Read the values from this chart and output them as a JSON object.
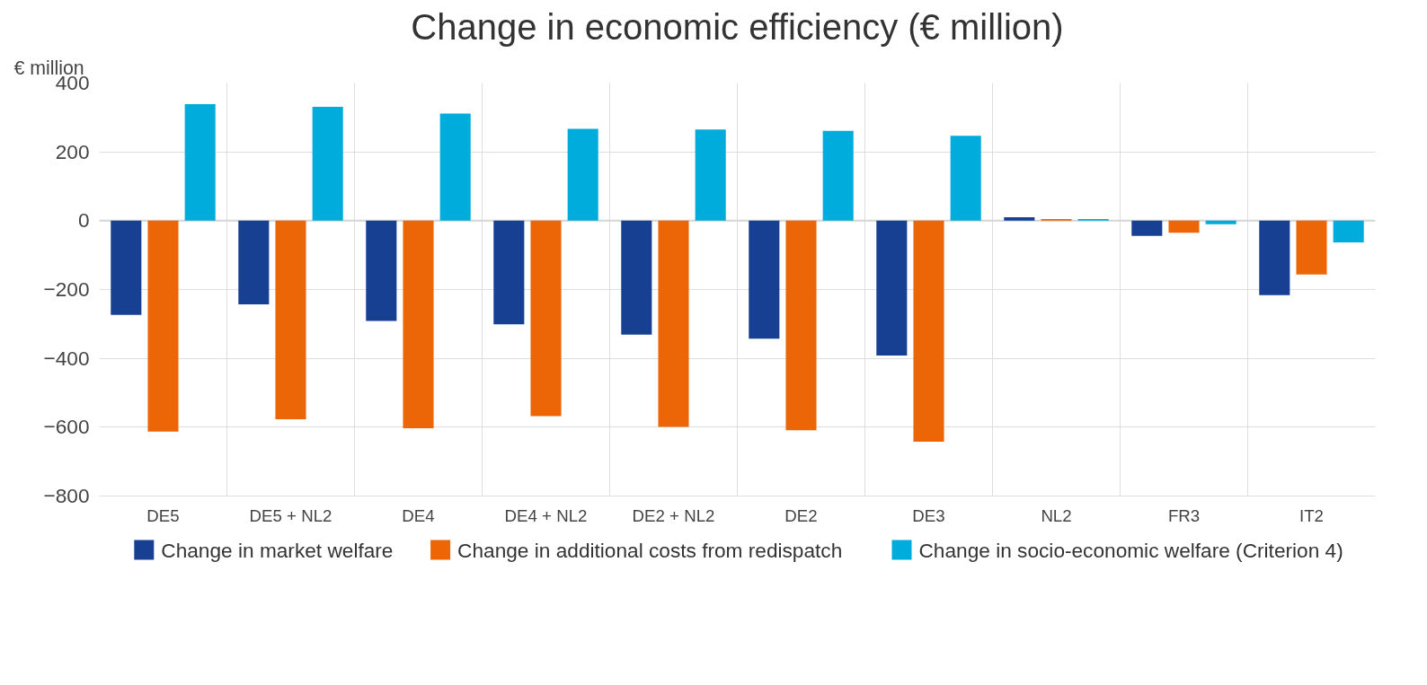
{
  "chart_data": {
    "type": "bar",
    "title": "Change in economic efficiency (€ million)",
    "ylabel": "€ million",
    "categories": [
      "DE5",
      "DE5 + NL2",
      "DE4",
      "DE4 + NL2",
      "DE2 + NL2",
      "DE2",
      "DE3",
      "NL2",
      "FR3",
      "IT2"
    ],
    "series": [
      {
        "name": "Change in market welfare",
        "color": "#174093",
        "values": [
          -274,
          -243,
          -291,
          -301,
          -331,
          -343,
          -392,
          10,
          -44,
          -216
        ]
      },
      {
        "name": "Change in additional costs from redispatch",
        "color": "#ec6608",
        "values": [
          -613,
          -577,
          -603,
          -568,
          -599,
          -609,
          -642,
          5,
          -35,
          -156
        ]
      },
      {
        "name": "Change in socio-economic welfare (Criterion 4)",
        "color": "#00acdb",
        "values": [
          339,
          331,
          311,
          267,
          265,
          261,
          247,
          5,
          -10,
          -63
        ]
      }
    ],
    "ylim": [
      -800,
      400
    ],
    "yticks": [
      -800,
      -600,
      -400,
      -200,
      0,
      200,
      400
    ],
    "grid": true,
    "legend": "bottom"
  }
}
